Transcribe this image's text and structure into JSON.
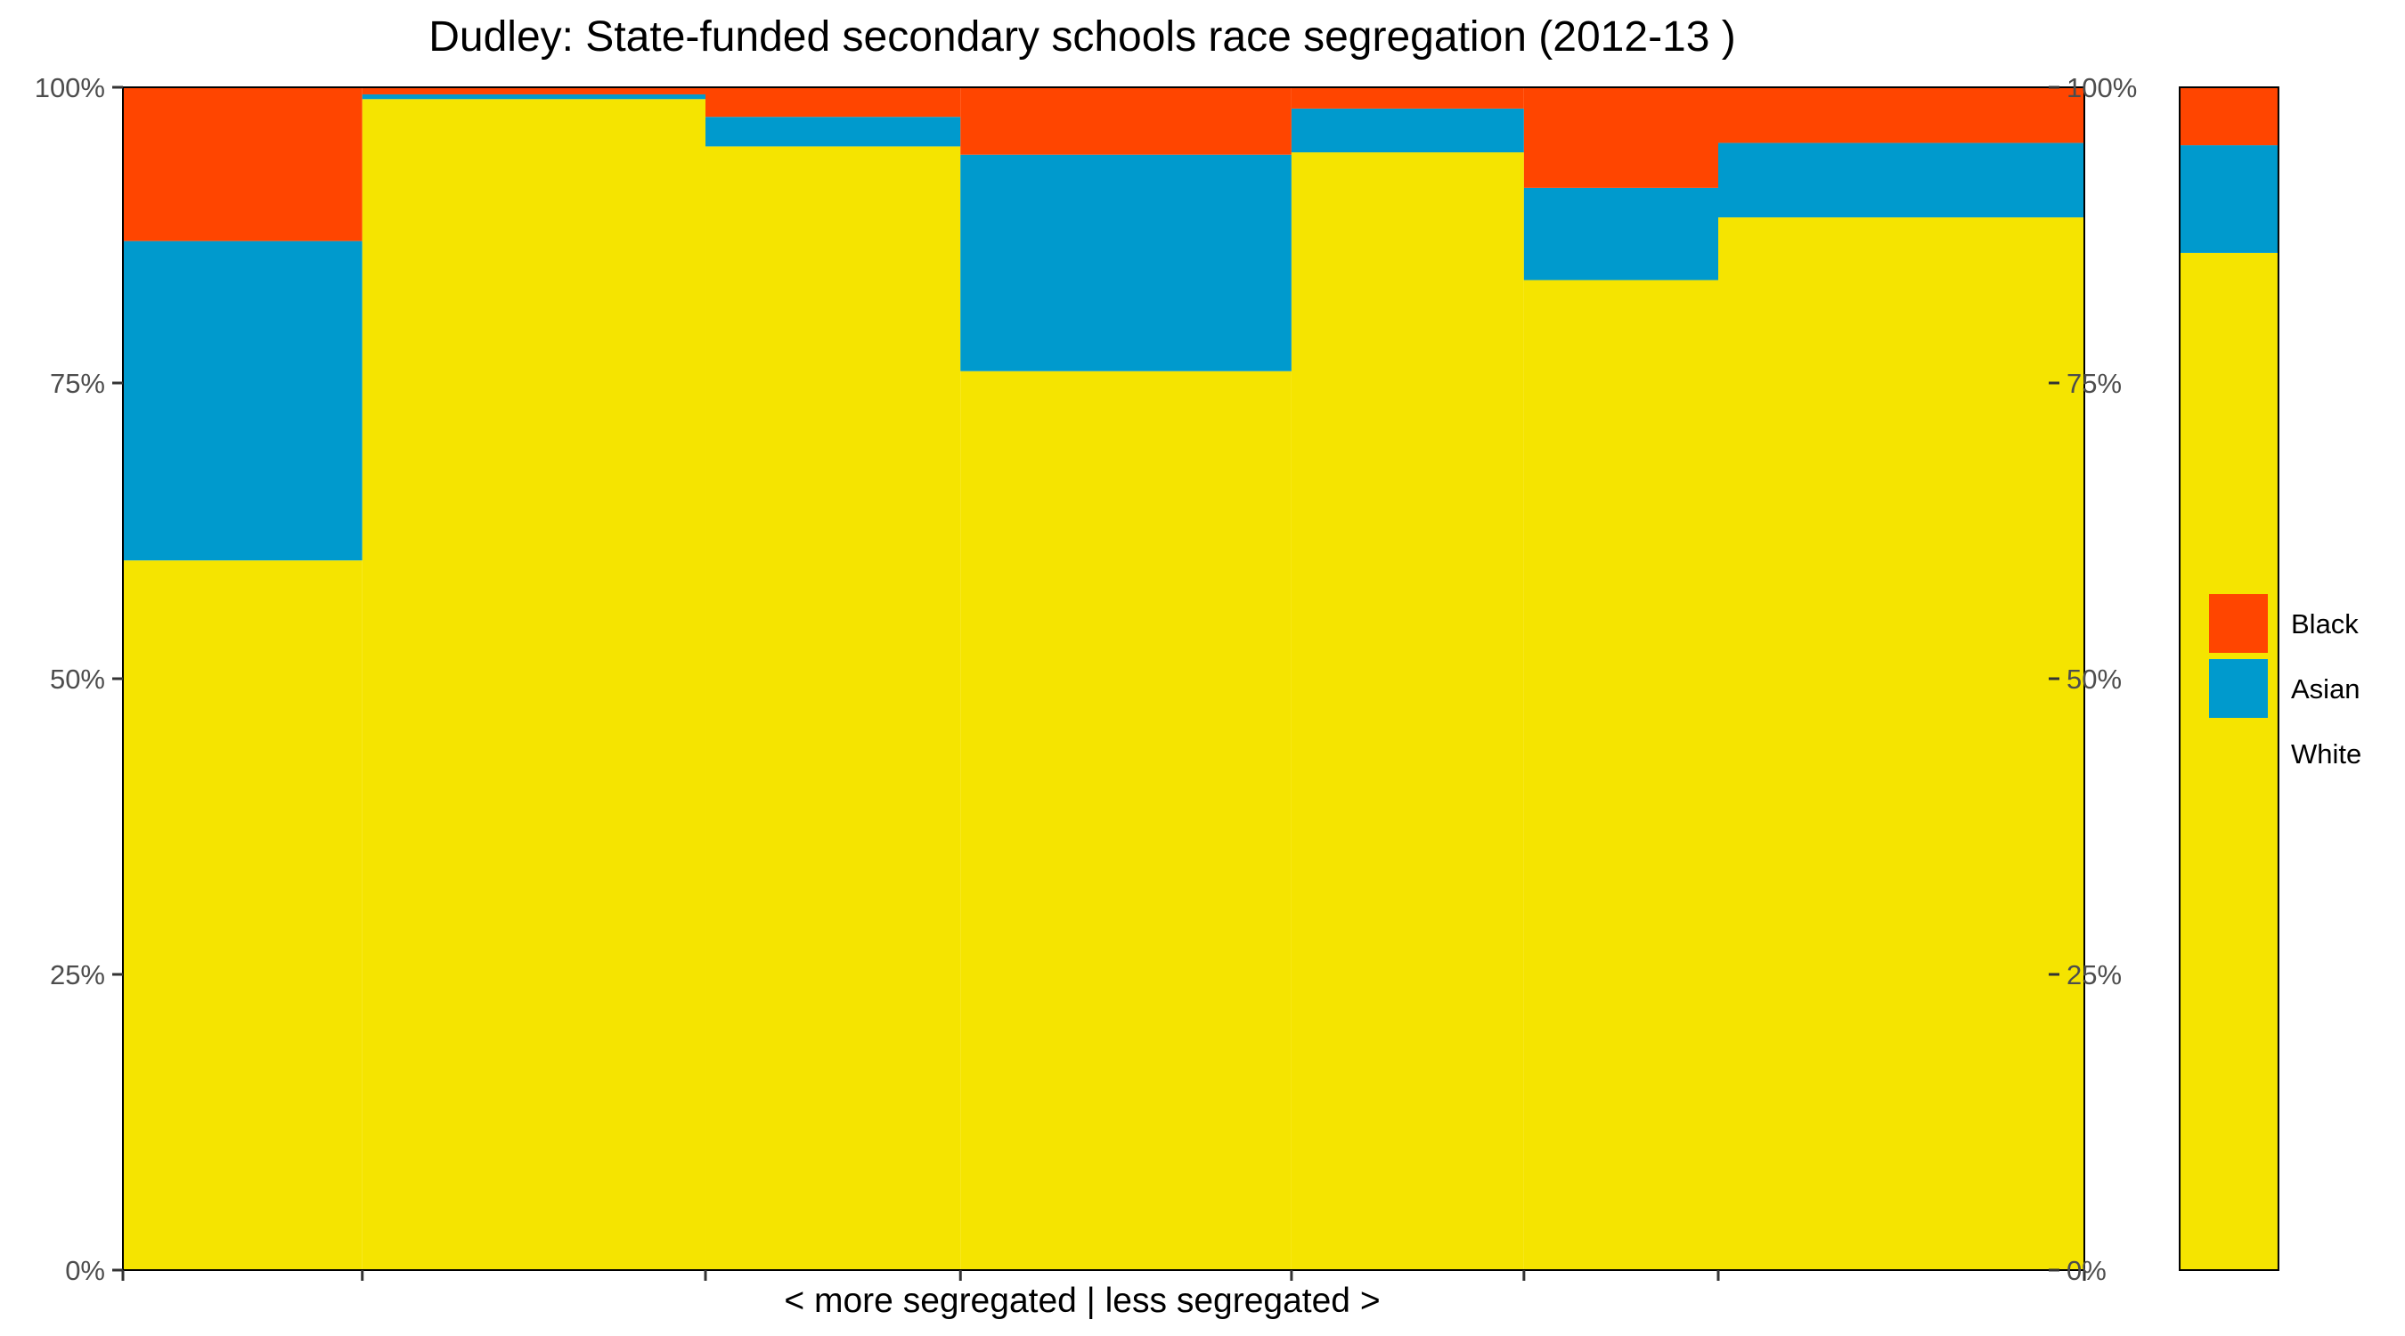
{
  "chart_data": {
    "type": "bar",
    "subtype": "stacked-percent-variable-width",
    "title": "Dudley: State-funded secondary schools race segregation (2012-13 )",
    "xlabel": "< more segregated | less segregated >",
    "ylabel": "",
    "ylim": [
      0,
      1
    ],
    "y_ticks": [
      {
        "value": 0,
        "label": "0%"
      },
      {
        "value": 0.25,
        "label": "25%"
      },
      {
        "value": 0.5,
        "label": "50%"
      },
      {
        "value": 0.75,
        "label": "75%"
      },
      {
        "value": 1,
        "label": "100%"
      }
    ],
    "secondary_y_axis": true,
    "grid": false,
    "legend_position": "right",
    "series": [
      {
        "name": "Black",
        "color": "#FF4500"
      },
      {
        "name": "Asian",
        "color": "#009ACD"
      },
      {
        "name": "White",
        "color": "#F5E400"
      }
    ],
    "groups": [
      {
        "width_share": 0.1243,
        "White": 0.6,
        "Asian": 0.27,
        "Black": 0.13
      },
      {
        "width_share": 0.1782,
        "White": 0.99,
        "Asian": 0.004,
        "Black": 0.006
      },
      {
        "width_share": 0.1324,
        "White": 0.95,
        "Asian": 0.025,
        "Black": 0.025
      },
      {
        "width_share": 0.1719,
        "White": 0.76,
        "Asian": 0.183,
        "Black": 0.057
      },
      {
        "width_share": 0.1207,
        "White": 0.945,
        "Asian": 0.037,
        "Black": 0.018
      },
      {
        "width_share": 0.1009,
        "White": 0.837,
        "Asian": 0.078,
        "Black": 0.085
      },
      {
        "width_share": 0.1901,
        "White": 0.89,
        "Asian": 0.063,
        "Black": 0.047
      }
    ],
    "gap_share": 0.0495,
    "summary_bar": {
      "width_share": 0.0513,
      "White": 0.86,
      "Asian": 0.091,
      "Black": 0.049
    }
  }
}
